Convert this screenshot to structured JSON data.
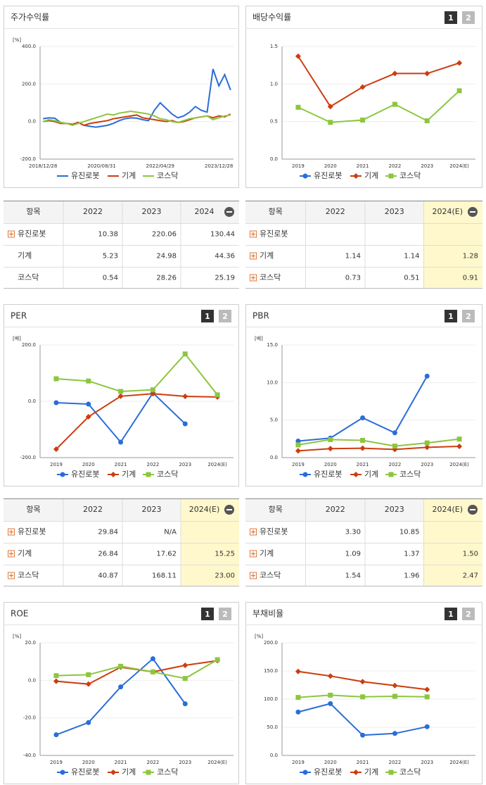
{
  "chart_data": [
    {
      "type": "line",
      "title": "주가수익률",
      "unit": "[%]",
      "categories": [
        "2018/12/28",
        null,
        null,
        null,
        null,
        null,
        null,
        null,
        null,
        null,
        "2020/08/31",
        null,
        null,
        null,
        null,
        null,
        null,
        null,
        null,
        null,
        "2022/04/29",
        null,
        null,
        null,
        null,
        null,
        null,
        null,
        null,
        null,
        "2023/12/28",
        null,
        null
      ],
      "ylim": [
        -200,
        400
      ],
      "yticks": [
        {
          "value": -200,
          "label": "-200.0"
        },
        {
          "value": 0,
          "label": "0.0"
        },
        {
          "value": 200,
          "label": "200.0"
        },
        {
          "value": 400,
          "label": "400.0"
        }
      ],
      "grid": true,
      "series": [
        {
          "name": "유진로봇",
          "color": "#2a6dd9",
          "values": [
            15,
            20,
            18,
            -5,
            -10,
            -15,
            -5,
            -20,
            -25,
            -30,
            -25,
            -20,
            -10,
            5,
            15,
            20,
            18,
            10,
            5,
            60,
            100,
            70,
            40,
            20,
            30,
            50,
            80,
            60,
            50,
            280,
            190,
            250,
            168
          ]
        },
        {
          "name": "기계",
          "color": "#cc3d0f",
          "values": [
            0,
            5,
            0,
            -10,
            -10,
            -15,
            -5,
            -20,
            -10,
            -5,
            0,
            5,
            15,
            20,
            25,
            30,
            35,
            20,
            15,
            10,
            5,
            0,
            5,
            -5,
            0,
            10,
            20,
            25,
            30,
            20,
            30,
            25,
            40
          ]
        },
        {
          "name": "코스닥",
          "color": "#8cc63f",
          "values": [
            0,
            10,
            5,
            -5,
            -10,
            -20,
            -10,
            0,
            10,
            20,
            30,
            40,
            35,
            45,
            50,
            55,
            50,
            45,
            40,
            30,
            15,
            10,
            0,
            -5,
            5,
            15,
            20,
            25,
            30,
            10,
            20,
            30,
            35
          ]
        }
      ]
    },
    {
      "type": "line",
      "title": "배당수익률",
      "buttons": [
        "1",
        "2"
      ],
      "categories": [
        "2019",
        "2020",
        "2021",
        "2022",
        "2023",
        "2024(E)"
      ],
      "ylim": [
        0,
        1.5
      ],
      "yticks": [
        {
          "value": 0,
          "label": "0.0"
        },
        {
          "value": 0.5,
          "label": "0.5"
        },
        {
          "value": 1,
          "label": "1.0"
        },
        {
          "value": 1.5,
          "label": "1.5"
        }
      ],
      "grid": true,
      "series": [
        {
          "name": "유진로봇",
          "color": "#2a6dd9",
          "marker": "circle",
          "values": [
            null,
            null,
            null,
            null,
            null,
            null
          ]
        },
        {
          "name": "기계",
          "color": "#cc3d0f",
          "marker": "diamond",
          "values": [
            1.37,
            0.7,
            0.96,
            1.14,
            1.14,
            1.28
          ]
        },
        {
          "name": "코스닥",
          "color": "#8cc63f",
          "marker": "square",
          "values": [
            0.69,
            0.49,
            0.52,
            0.73,
            0.51,
            0.91
          ]
        }
      ]
    },
    {
      "type": "line",
      "title": "PER",
      "buttons": [
        "1",
        "2"
      ],
      "unit": "[배]",
      "categories": [
        "2019",
        "2020",
        "2021",
        "2022",
        "2023",
        "2024(E)"
      ],
      "ylim": [
        -200,
        200
      ],
      "yticks": [
        {
          "value": -200,
          "label": "-200.0"
        },
        {
          "value": 0,
          "label": "0.0"
        },
        {
          "value": 200,
          "label": "200.0"
        }
      ],
      "grid": true,
      "series": [
        {
          "name": "유진로봇",
          "color": "#2a6dd9",
          "marker": "circle",
          "values": [
            -5,
            -10,
            -145,
            29.84,
            -80,
            null
          ]
        },
        {
          "name": "기계",
          "color": "#cc3d0f",
          "marker": "diamond",
          "values": [
            -170,
            -55,
            18,
            26.84,
            17.62,
            15.25
          ]
        },
        {
          "name": "코스닥",
          "color": "#8cc63f",
          "marker": "square",
          "values": [
            80,
            72,
            35,
            40.87,
            168.11,
            23
          ]
        }
      ]
    },
    {
      "type": "line",
      "title": "PBR",
      "buttons": [
        "1",
        "2"
      ],
      "unit": "[배]",
      "categories": [
        "2019",
        "2020",
        "2021",
        "2022",
        "2023",
        "2024(E)"
      ],
      "ylim": [
        0,
        15
      ],
      "yticks": [
        {
          "value": 0,
          "label": "0.0"
        },
        {
          "value": 5,
          "label": "5.0"
        },
        {
          "value": 10,
          "label": "10.0"
        },
        {
          "value": 15,
          "label": "15.0"
        }
      ],
      "grid": true,
      "series": [
        {
          "name": "유진로봇",
          "color": "#2a6dd9",
          "marker": "circle",
          "values": [
            2.2,
            2.6,
            5.3,
            3.3,
            10.85,
            null
          ]
        },
        {
          "name": "기계",
          "color": "#cc3d0f",
          "marker": "diamond",
          "values": [
            0.9,
            1.2,
            1.25,
            1.09,
            1.37,
            1.5
          ]
        },
        {
          "name": "코스닥",
          "color": "#8cc63f",
          "marker": "square",
          "values": [
            1.7,
            2.4,
            2.3,
            1.54,
            1.96,
            2.47
          ]
        }
      ]
    },
    {
      "type": "line",
      "title": "ROE",
      "buttons": [
        "1",
        "2"
      ],
      "unit": "[%]",
      "categories": [
        "2019",
        "2020",
        "2021",
        "2022",
        "2023",
        "2024(E)"
      ],
      "ylim": [
        -40,
        20
      ],
      "yticks": [
        {
          "value": -40,
          "label": "-40.0"
        },
        {
          "value": -20,
          "label": "-20.0"
        },
        {
          "value": 0,
          "label": "0.0"
        },
        {
          "value": 20,
          "label": "20.0"
        }
      ],
      "grid": true,
      "series": [
        {
          "name": "유진로봇",
          "color": "#2a6dd9",
          "marker": "circle",
          "values": [
            -29,
            -22.5,
            -3.5,
            11.5,
            -12.5,
            null
          ]
        },
        {
          "name": "기계",
          "color": "#cc3d0f",
          "marker": "diamond",
          "values": [
            -0.5,
            -2,
            7,
            4.5,
            8,
            10.5
          ]
        },
        {
          "name": "코스닥",
          "color": "#8cc63f",
          "marker": "square",
          "values": [
            2.5,
            3,
            7.5,
            4.5,
            1,
            11
          ]
        }
      ]
    },
    {
      "type": "line",
      "title": "부채비율",
      "buttons": [
        "1",
        "2"
      ],
      "unit": "[%]",
      "categories": [
        "2019",
        "2020",
        "2021",
        "2022",
        "2023",
        "2024(E)"
      ],
      "ylim": [
        0,
        200
      ],
      "yticks": [
        {
          "value": 0,
          "label": "0.0"
        },
        {
          "value": 50,
          "label": "50.0"
        },
        {
          "value": 100,
          "label": "100.0"
        },
        {
          "value": 150,
          "label": "150.0"
        },
        {
          "value": 200,
          "label": "200.0"
        }
      ],
      "grid": true,
      "series": [
        {
          "name": "유진로봇",
          "color": "#2a6dd9",
          "marker": "circle",
          "values": [
            77,
            92,
            36,
            39,
            51,
            null
          ]
        },
        {
          "name": "기계",
          "color": "#cc3d0f",
          "marker": "diamond",
          "values": [
            149,
            141,
            131,
            124,
            117,
            null
          ]
        },
        {
          "name": "코스닥",
          "color": "#8cc63f",
          "marker": "square",
          "values": [
            103,
            107,
            104,
            105,
            104,
            null
          ]
        }
      ]
    }
  ],
  "tables": [
    {
      "header": [
        "항목",
        "2022",
        "2023",
        "2024"
      ],
      "forecast_highlight": false,
      "rows": [
        {
          "name": "유진로봇",
          "icon": true,
          "cells": [
            "10.38",
            "220.06",
            "130.44"
          ]
        },
        {
          "name": "기계",
          "icon": false,
          "cells": [
            "5.23",
            "24.98",
            "44.36"
          ]
        },
        {
          "name": "코스닥",
          "icon": false,
          "cells": [
            "0.54",
            "28.26",
            "25.19"
          ]
        }
      ]
    },
    {
      "header": [
        "항목",
        "2022",
        "2023",
        "2024(E)"
      ],
      "forecast_highlight": true,
      "rows": [
        {
          "name": "유진로봇",
          "icon": true,
          "cells": [
            null,
            null,
            null
          ]
        },
        {
          "name": "기계",
          "icon": true,
          "cells": [
            "1.14",
            "1.14",
            "1.28"
          ]
        },
        {
          "name": "코스닥",
          "icon": true,
          "cells": [
            "0.73",
            "0.51",
            "0.91"
          ]
        }
      ]
    },
    {
      "header": [
        "항목",
        "2022",
        "2023",
        "2024(E)"
      ],
      "forecast_highlight": true,
      "rows": [
        {
          "name": "유진로봇",
          "icon": true,
          "cells": [
            "29.84",
            "N/A",
            null
          ]
        },
        {
          "name": "기계",
          "icon": true,
          "cells": [
            "26.84",
            "17.62",
            "15.25"
          ]
        },
        {
          "name": "코스닥",
          "icon": true,
          "cells": [
            "40.87",
            "168.11",
            "23.00"
          ]
        }
      ]
    },
    {
      "header": [
        "항목",
        "2022",
        "2023",
        "2024(E)"
      ],
      "forecast_highlight": true,
      "rows": [
        {
          "name": "유진로봇",
          "icon": true,
          "cells": [
            "3.30",
            "10.85",
            null
          ]
        },
        {
          "name": "기계",
          "icon": true,
          "cells": [
            "1.09",
            "1.37",
            "1.50"
          ]
        },
        {
          "name": "코스닥",
          "icon": true,
          "cells": [
            "1.54",
            "1.96",
            "2.47"
          ]
        }
      ]
    }
  ]
}
